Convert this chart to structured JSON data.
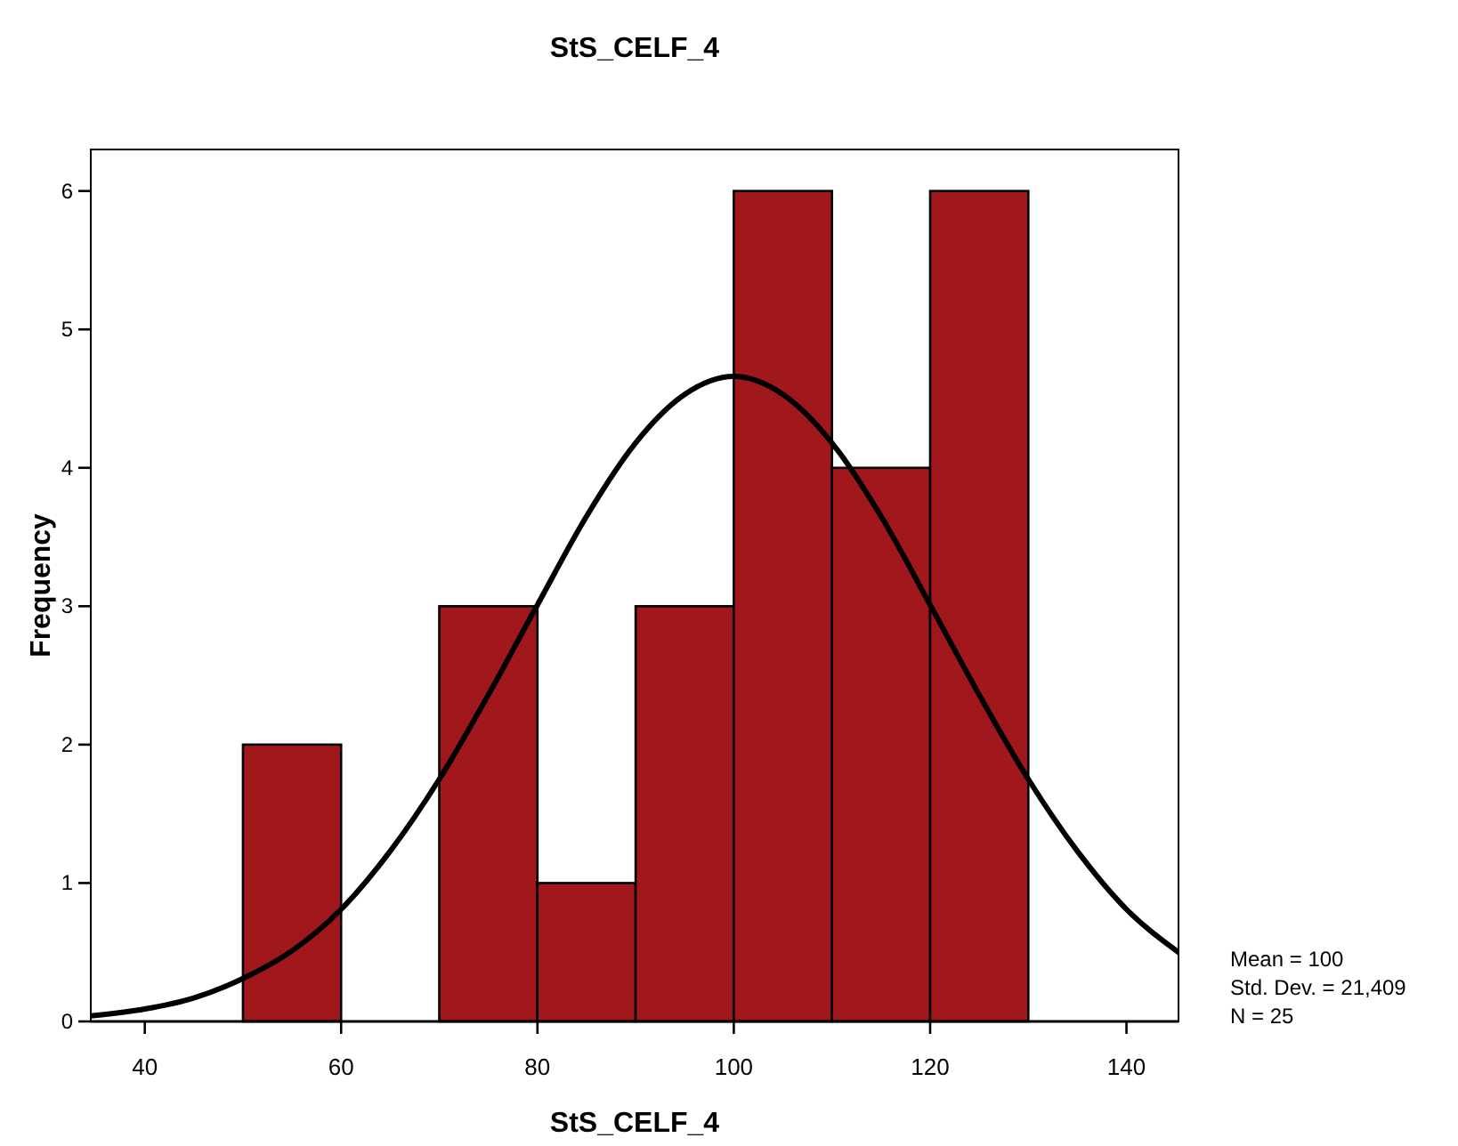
{
  "chart_data": {
    "type": "histogram",
    "title": "StS_CELF_4",
    "xlabel": "StS_CELF_4",
    "ylabel": "Frequency",
    "bins": [
      50,
      60,
      70,
      80,
      90,
      100,
      110,
      120,
      130
    ],
    "values": [
      2,
      0,
      3,
      1,
      3,
      6,
      4,
      6
    ],
    "color": "#a0171c",
    "series": [
      {
        "type": "line",
        "color": "#000000",
        "x": [
          34.5,
          40,
          45,
          50,
          55,
          60,
          65,
          70,
          75,
          80,
          85,
          90,
          95,
          100,
          105,
          110,
          115,
          120,
          125,
          130,
          135,
          140,
          145.3
        ],
        "values": [
          0.04,
          0.09,
          0.17,
          0.31,
          0.51,
          0.81,
          1.23,
          1.75,
          2.36,
          3.01,
          3.65,
          4.18,
          4.53,
          4.66,
          4.53,
          4.18,
          3.65,
          3.01,
          2.36,
          1.75,
          1.23,
          0.81,
          0.5
        ]
      }
    ],
    "xlim": [
      34.5,
      145.3
    ],
    "xticks": [
      40,
      60,
      80,
      100,
      120,
      140
    ],
    "ylim": [
      0,
      6.3
    ],
    "yticks": [
      0,
      1,
      2,
      3,
      4,
      5,
      6
    ],
    "grid": false,
    "annotations": [
      "Mean = 100",
      "Std. Dev. = 21,409",
      "N = 25"
    ]
  }
}
